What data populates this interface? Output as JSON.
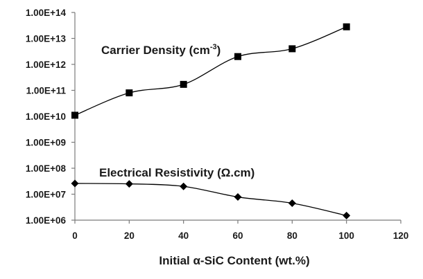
{
  "chart_data": {
    "type": "line",
    "title": "",
    "xlabel": "Initial α-SiC Content (wt.%)",
    "ylabel": "",
    "xlim": [
      0,
      120
    ],
    "ylim": [
      1000000,
      100000000000000
    ],
    "y_scale": "log",
    "grid": false,
    "x_ticks": [
      "0",
      "20",
      "40",
      "60",
      "80",
      "100",
      "120"
    ],
    "x_tick_values": [
      0,
      20,
      40,
      60,
      80,
      100,
      120
    ],
    "y_ticks": [
      "1.00E+06",
      "1.00E+07",
      "1.00E+08",
      "1.00E+09",
      "1.00E+10",
      "1.00E+11",
      "1.00E+12",
      "1.00E+13",
      "1.00E+14"
    ],
    "y_tick_values": [
      1000000,
      10000000,
      100000000,
      1000000000,
      10000000000,
      100000000000,
      1000000000000,
      10000000000000,
      100000000000000
    ],
    "series": [
      {
        "marker": "square",
        "color": "#000000",
        "x": [
          0,
          20,
          40,
          60,
          80,
          100
        ],
        "y": [
          11000000000,
          80000000000,
          170000000000,
          2000000000000,
          4000000000000,
          28000000000000
        ]
      },
      {
        "marker": "diamond",
        "color": "#000000",
        "x": [
          0,
          20,
          40,
          60,
          80,
          100
        ],
        "y": [
          26000000,
          25000000,
          20000000,
          7800000,
          4500000,
          1500000
        ]
      }
    ],
    "annotations": [
      {
        "text": "Carrier Density (cm",
        "superscript": "-3",
        "suffix": ")"
      },
      {
        "text": "Electrical Resistivity (Ω.cm)",
        "superscript": "",
        "suffix": ""
      }
    ]
  }
}
